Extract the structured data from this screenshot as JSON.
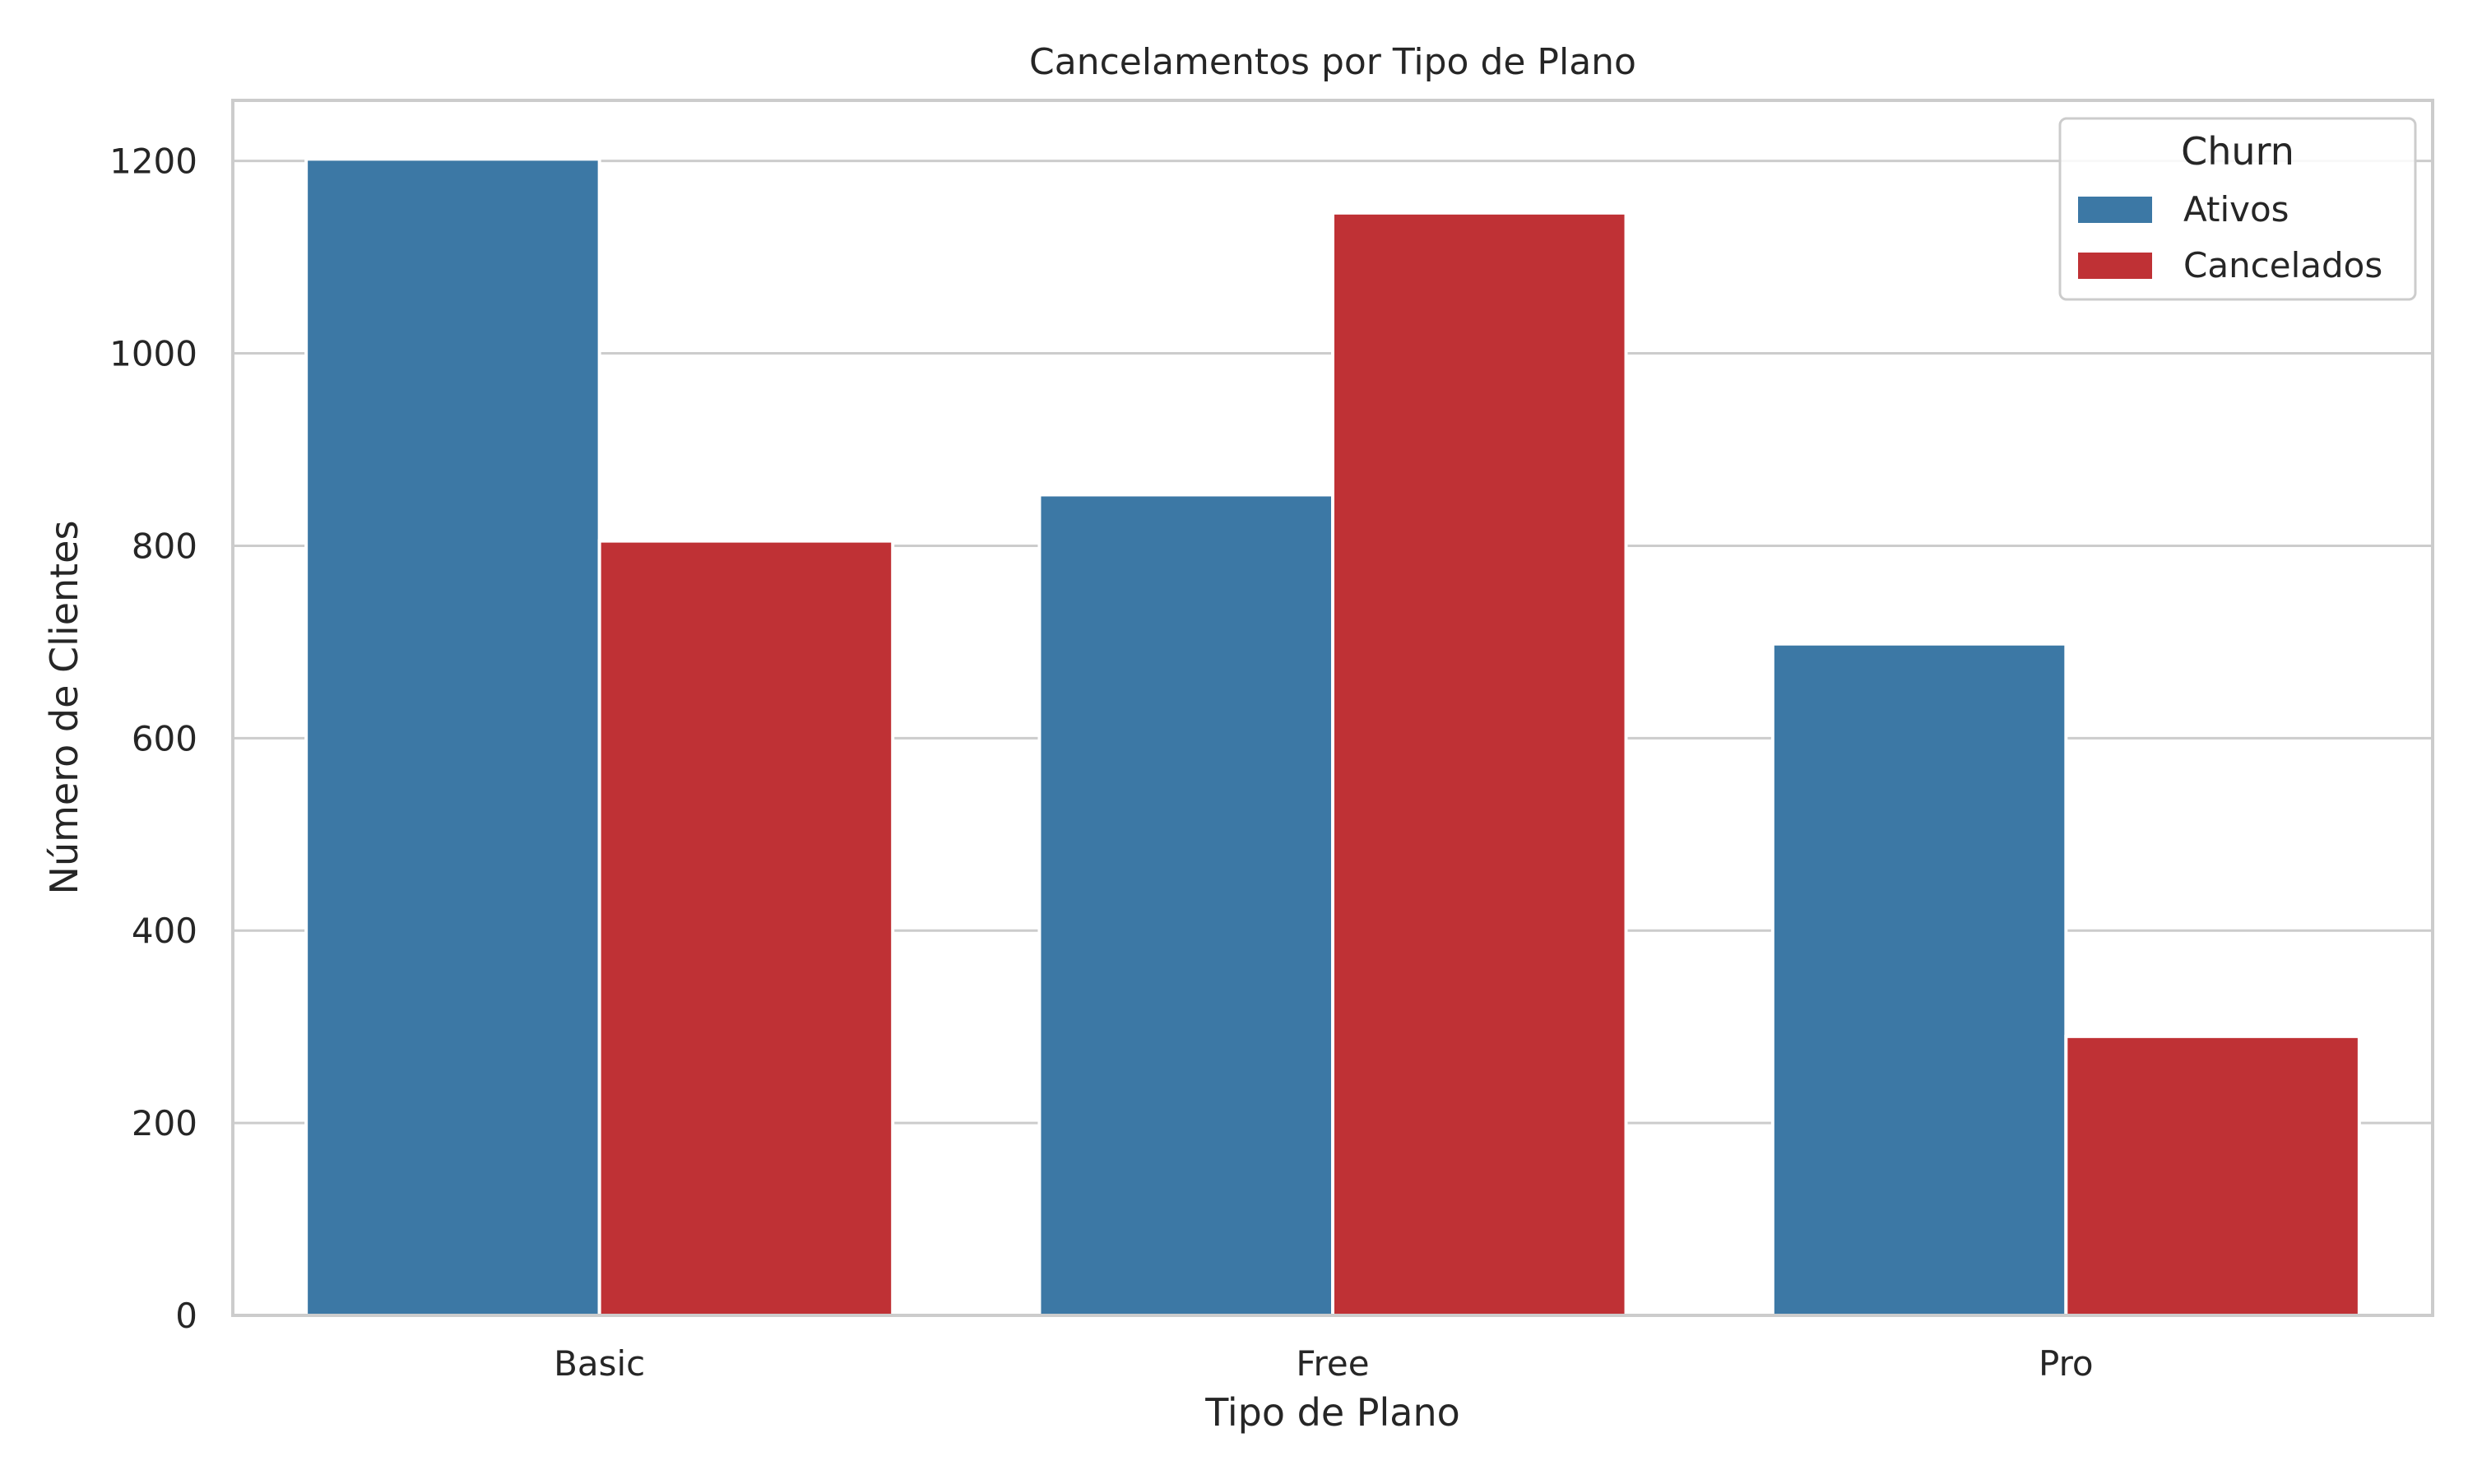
{
  "chart_data": {
    "type": "bar",
    "title": "Cancelamentos por Tipo de Plano",
    "xlabel": "Tipo de Plano",
    "ylabel": "Número de Clientes",
    "categories": [
      "Basic",
      "Free",
      "Pro"
    ],
    "series": [
      {
        "name": "Ativos",
        "values": [
          1202,
          853,
          698
        ],
        "color": "#3c78a5"
      },
      {
        "name": "Cancelados",
        "values": [
          805,
          1146,
          290
        ],
        "color": "#bf3135"
      }
    ],
    "ylim": [
      0,
      1263
    ],
    "yticks": [
      0,
      200,
      400,
      600,
      800,
      1000,
      1200
    ],
    "ytick_labels": [
      "0",
      "200",
      "400",
      "600",
      "800",
      "1000",
      "1200"
    ],
    "grid": "horizontal",
    "legend": {
      "title": "Churn",
      "position": "top-right"
    },
    "colors": {
      "background": "#ffffff",
      "grid": "#cccccc",
      "spine": "#cccccc",
      "text": "#262626"
    }
  }
}
